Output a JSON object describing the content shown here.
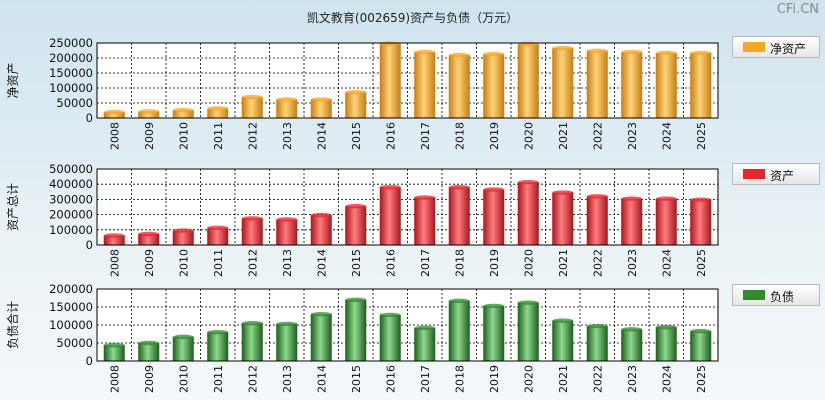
{
  "title": "凯文教育(002659)资产与负债（万元）",
  "watermark": "CFi.CN",
  "chart_data": [
    {
      "type": "bar",
      "ylabel": "净资产",
      "legend": "净资产",
      "color": "#f5a623",
      "categories": [
        "2008",
        "2009",
        "2010",
        "2011",
        "2012",
        "2013",
        "2014",
        "2015",
        "2016",
        "2017",
        "2018",
        "2019",
        "2020",
        "2021",
        "2022",
        "2023",
        "2024",
        "2025"
      ],
      "values": [
        20000,
        22000,
        26000,
        32000,
        70000,
        62000,
        62000,
        86000,
        248000,
        220000,
        210000,
        213000,
        247000,
        233000,
        224000,
        220000,
        217000,
        217000
      ],
      "ylim": [
        0,
        250000
      ],
      "yticks": [
        0,
        50000,
        100000,
        150000,
        200000,
        250000
      ]
    },
    {
      "type": "bar",
      "ylabel": "资产总计",
      "legend": "资产",
      "color": "#e8262c",
      "categories": [
        "2008",
        "2009",
        "2010",
        "2011",
        "2012",
        "2013",
        "2014",
        "2015",
        "2016",
        "2017",
        "2018",
        "2019",
        "2020",
        "2021",
        "2022",
        "2023",
        "2024",
        "2025"
      ],
      "values": [
        62000,
        73000,
        95000,
        113000,
        175000,
        168000,
        197000,
        255000,
        380000,
        312000,
        380000,
        365000,
        413000,
        345000,
        320000,
        305000,
        305000,
        298000
      ],
      "ylim": [
        0,
        500000
      ],
      "yticks": [
        0,
        100000,
        200000,
        300000,
        400000,
        500000
      ]
    },
    {
      "type": "bar",
      "ylabel": "负债合计",
      "legend": "负债",
      "color": "#2e8b2e",
      "categories": [
        "2008",
        "2009",
        "2010",
        "2011",
        "2012",
        "2013",
        "2014",
        "2015",
        "2016",
        "2017",
        "2018",
        "2019",
        "2020",
        "2021",
        "2022",
        "2023",
        "2024",
        "2025"
      ],
      "values": [
        44000,
        50000,
        67000,
        80000,
        105000,
        103000,
        130000,
        170000,
        128000,
        92000,
        167000,
        153000,
        162000,
        112000,
        97000,
        88000,
        94000,
        83000
      ],
      "ylim": [
        0,
        200000
      ],
      "yticks": [
        0,
        50000,
        100000,
        150000,
        200000
      ]
    }
  ]
}
